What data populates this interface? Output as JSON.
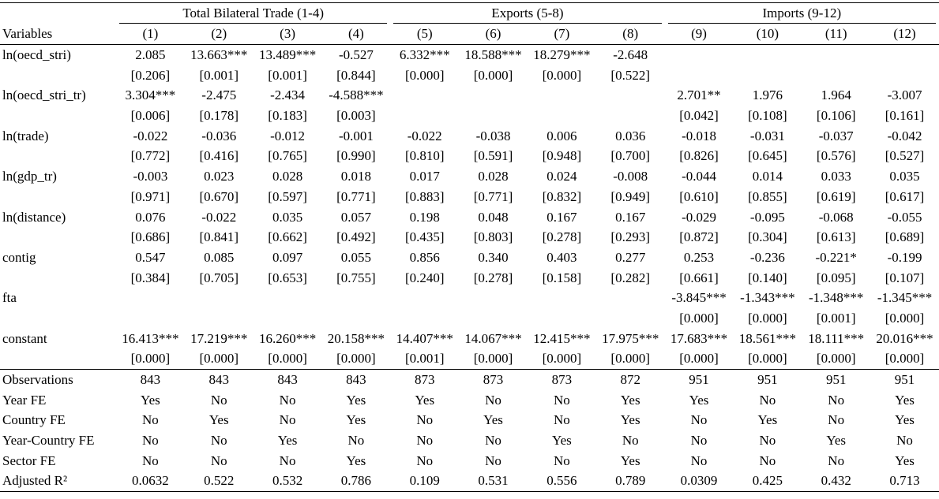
{
  "table": {
    "groups": [
      {
        "label": "Total Bilateral Trade (1-4)",
        "span": 4
      },
      {
        "label": "Exports (5-8)",
        "span": 4
      },
      {
        "label": "Imports (9-12)",
        "span": 4
      }
    ],
    "columns": [
      "Variables",
      "(1)",
      "(2)",
      "(3)",
      "(4)",
      "(5)",
      "(6)",
      "(7)",
      "(8)",
      "(9)",
      "(10)",
      "(11)",
      "(12)"
    ],
    "rows": [
      {
        "label": "ln(oecd_stri)",
        "coef": [
          "2.085",
          "13.663***",
          "13.489***",
          "-0.527",
          "6.332***",
          "18.588***",
          "18.279***",
          "-2.648",
          null,
          null,
          null,
          null
        ],
        "p": [
          "[0.206]",
          "[0.001]",
          "[0.001]",
          "[0.844]",
          "[0.000]",
          "[0.000]",
          "[0.000]",
          "[0.522]",
          null,
          null,
          null,
          null
        ]
      },
      {
        "label": "ln(oecd_stri_tr)",
        "coef": [
          "3.304***",
          "-2.475",
          "-2.434",
          "-4.588***",
          null,
          null,
          null,
          null,
          "2.701**",
          "1.976",
          "1.964",
          "-3.007"
        ],
        "p": [
          "[0.006]",
          "[0.178]",
          "[0.183]",
          "[0.003]",
          null,
          null,
          null,
          null,
          "[0.042]",
          "[0.108]",
          "[0.106]",
          "[0.161]"
        ]
      },
      {
        "label": "ln(trade)",
        "coef": [
          "-0.022",
          "-0.036",
          "-0.012",
          "-0.001",
          "-0.022",
          "-0.038",
          "0.006",
          "0.036",
          "-0.018",
          "-0.031",
          "-0.037",
          "-0.042"
        ],
        "p": [
          "[0.772]",
          "[0.416]",
          "[0.765]",
          "[0.990]",
          "[0.810]",
          "[0.591]",
          "[0.948]",
          "[0.700]",
          "[0.826]",
          "[0.645]",
          "[0.576]",
          "[0.527]"
        ]
      },
      {
        "label": "ln(gdp_tr)",
        "coef": [
          "-0.003",
          "0.023",
          "0.028",
          "0.018",
          "0.017",
          "0.028",
          "0.024",
          "-0.008",
          "-0.044",
          "0.014",
          "0.033",
          "0.035"
        ],
        "p": [
          "[0.971]",
          "[0.670]",
          "[0.597]",
          "[0.771]",
          "[0.883]",
          "[0.771]",
          "[0.832]",
          "[0.949]",
          "[0.610]",
          "[0.855]",
          "[0.619]",
          "[0.617]"
        ]
      },
      {
        "label": "ln(distance)",
        "coef": [
          "0.076",
          "-0.022",
          "0.035",
          "0.057",
          "0.198",
          "0.048",
          "0.167",
          "0.167",
          "-0.029",
          "-0.095",
          "-0.068",
          "-0.055"
        ],
        "p": [
          "[0.686]",
          "[0.841]",
          "[0.662]",
          "[0.492]",
          "[0.435]",
          "[0.803]",
          "[0.278]",
          "[0.293]",
          "[0.872]",
          "[0.304]",
          "[0.613]",
          "[0.689]"
        ]
      },
      {
        "label": "contig",
        "coef": [
          "0.547",
          "0.085",
          "0.097",
          "0.055",
          "0.856",
          "0.340",
          "0.403",
          "0.277",
          "0.253",
          "-0.236",
          "-0.221*",
          "-0.199"
        ],
        "p": [
          "[0.384]",
          "[0.705]",
          "[0.653]",
          "[0.755]",
          "[0.240]",
          "[0.278]",
          "[0.158]",
          "[0.282]",
          "[0.661]",
          "[0.140]",
          "[0.095]",
          "[0.107]"
        ]
      },
      {
        "label": "fta",
        "coef": [
          null,
          null,
          null,
          null,
          null,
          null,
          null,
          null,
          "-3.845***",
          "-1.343***",
          "-1.348***",
          "-1.345***"
        ],
        "p": [
          null,
          null,
          null,
          null,
          null,
          null,
          null,
          null,
          "[0.000]",
          "[0.000]",
          "[0.001]",
          "[0.000]"
        ]
      },
      {
        "label": "constant",
        "coef": [
          "16.413***",
          "17.219***",
          "16.260***",
          "20.158***",
          "14.407***",
          "14.067***",
          "12.415***",
          "17.975***",
          "17.683***",
          "18.561***",
          "18.111***",
          "20.016***"
        ],
        "p": [
          "[0.000]",
          "[0.000]",
          "[0.000]",
          "[0.000]",
          "[0.001]",
          "[0.000]",
          "[0.000]",
          "[0.000]",
          "[0.000]",
          "[0.000]",
          "[0.000]",
          "[0.000]"
        ]
      }
    ],
    "stats": [
      {
        "label": "Observations",
        "values": [
          843,
          843,
          843,
          843,
          873,
          873,
          873,
          872,
          951,
          951,
          951,
          951
        ]
      },
      {
        "label": "Year FE",
        "values": [
          "Yes",
          "No",
          "No",
          "Yes",
          "Yes",
          "No",
          "No",
          "Yes",
          "Yes",
          "No",
          "No",
          "Yes"
        ]
      },
      {
        "label": "Country FE",
        "values": [
          "No",
          "Yes",
          "No",
          "Yes",
          "No",
          "Yes",
          "No",
          "Yes",
          "No",
          "Yes",
          "No",
          "Yes"
        ]
      },
      {
        "label": "Year-Country FE",
        "values": [
          "No",
          "No",
          "Yes",
          "No",
          "No",
          "No",
          "Yes",
          "No",
          "No",
          "No",
          "Yes",
          "No"
        ]
      },
      {
        "label": "Sector FE",
        "values": [
          "No",
          "No",
          "No",
          "Yes",
          "No",
          "No",
          "No",
          "Yes",
          "No",
          "No",
          "No",
          "Yes"
        ]
      },
      {
        "label": "Adjusted R²",
        "values": [
          0.0632,
          0.522,
          0.532,
          0.786,
          0.109,
          0.531,
          0.556,
          0.789,
          0.0309,
          0.425,
          0.432,
          0.713
        ]
      }
    ]
  }
}
